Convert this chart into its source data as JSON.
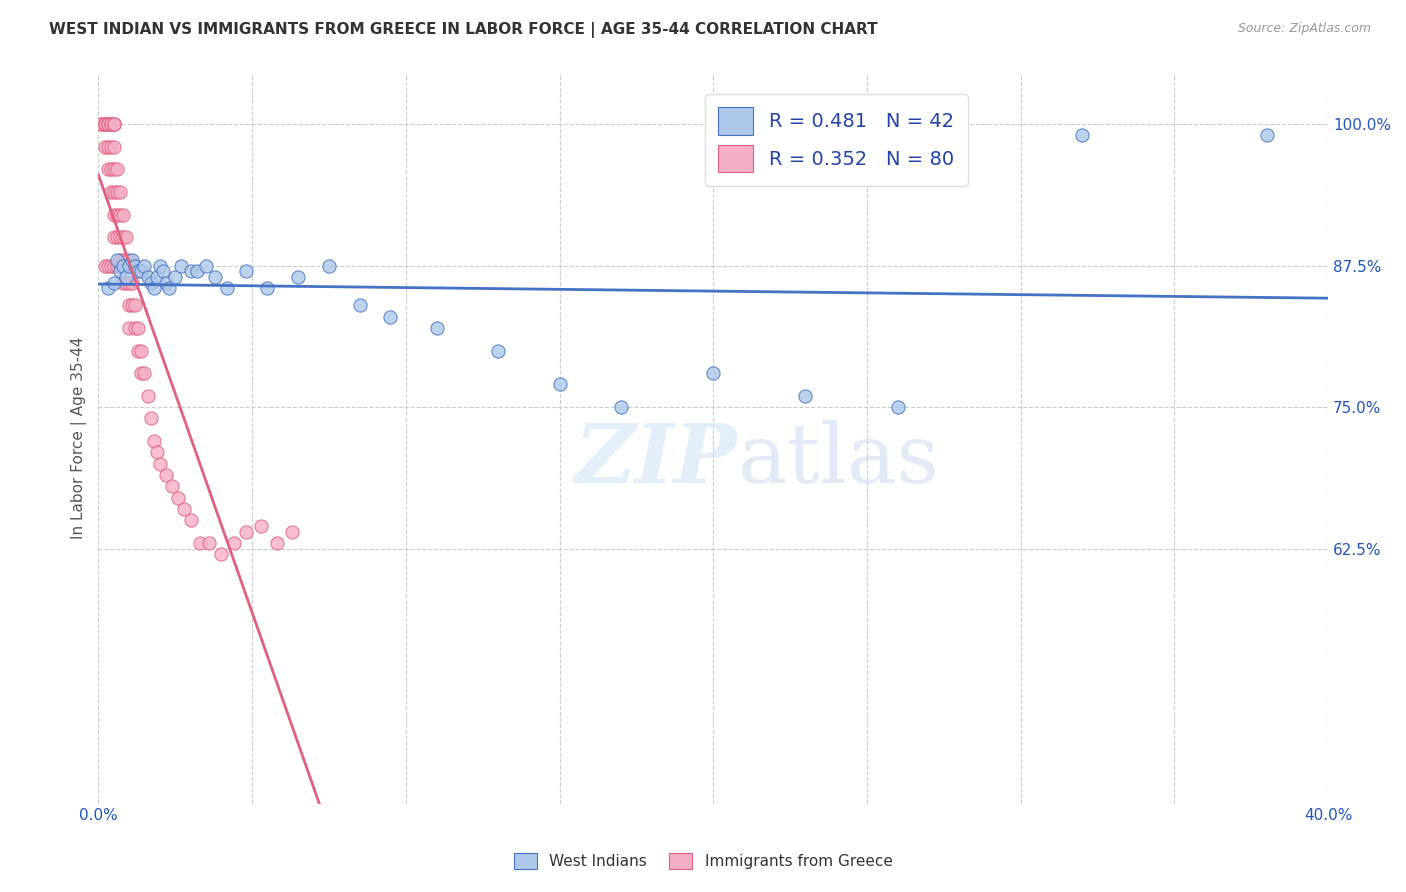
{
  "title": "WEST INDIAN VS IMMIGRANTS FROM GREECE IN LABOR FORCE | AGE 35-44 CORRELATION CHART",
  "source": "Source: ZipAtlas.com",
  "ylabel": "In Labor Force | Age 35-44",
  "xlim": [
    0.0,
    0.4
  ],
  "ylim": [
    0.4,
    1.045
  ],
  "xticks": [
    0.0,
    0.05,
    0.1,
    0.15,
    0.2,
    0.25,
    0.3,
    0.35,
    0.4
  ],
  "xticklabels": [
    "0.0%",
    "",
    "",
    "",
    "",
    "",
    "",
    "",
    "40.0%"
  ],
  "yticks": [
    0.625,
    0.75,
    0.875,
    1.0
  ],
  "yticklabels": [
    "62.5%",
    "75.0%",
    "87.5%",
    "100.0%"
  ],
  "west_indian_R": 0.481,
  "west_indian_N": 42,
  "greece_R": 0.352,
  "greece_N": 80,
  "west_indian_color": "#adc8e8",
  "greece_color": "#f5afc4",
  "west_indian_line_color": "#4472c4",
  "greece_line_color": "#e06080",
  "legend_text_color": "#2244aa",
  "watermark_line1": "ZIP",
  "watermark_line2": "atlas",
  "background_color": "#ffffff",
  "grid_color": "#cccccc",
  "west_indian_x": [
    0.003,
    0.005,
    0.006,
    0.007,
    0.008,
    0.009,
    0.01,
    0.011,
    0.012,
    0.013,
    0.014,
    0.015,
    0.016,
    0.017,
    0.018,
    0.019,
    0.02,
    0.021,
    0.022,
    0.023,
    0.025,
    0.027,
    0.03,
    0.032,
    0.035,
    0.038,
    0.042,
    0.048,
    0.055,
    0.065,
    0.075,
    0.085,
    0.095,
    0.11,
    0.13,
    0.15,
    0.17,
    0.2,
    0.23,
    0.26,
    0.32,
    0.38
  ],
  "west_indian_y": [
    0.855,
    0.86,
    0.88,
    0.87,
    0.875,
    0.865,
    0.875,
    0.88,
    0.875,
    0.87,
    0.87,
    0.875,
    0.865,
    0.86,
    0.855,
    0.865,
    0.875,
    0.87,
    0.86,
    0.855,
    0.865,
    0.875,
    0.87,
    0.87,
    0.875,
    0.865,
    0.855,
    0.87,
    0.855,
    0.865,
    0.875,
    0.84,
    0.83,
    0.82,
    0.8,
    0.77,
    0.75,
    0.78,
    0.76,
    0.75,
    0.99,
    0.99
  ],
  "greece_x": [
    0.001,
    0.001,
    0.002,
    0.002,
    0.002,
    0.002,
    0.003,
    0.003,
    0.003,
    0.003,
    0.003,
    0.004,
    0.004,
    0.004,
    0.004,
    0.004,
    0.005,
    0.005,
    0.005,
    0.005,
    0.005,
    0.005,
    0.005,
    0.005,
    0.006,
    0.006,
    0.006,
    0.006,
    0.007,
    0.007,
    0.007,
    0.007,
    0.008,
    0.008,
    0.008,
    0.008,
    0.009,
    0.009,
    0.009,
    0.01,
    0.01,
    0.01,
    0.01,
    0.011,
    0.011,
    0.012,
    0.012,
    0.013,
    0.013,
    0.014,
    0.014,
    0.015,
    0.016,
    0.017,
    0.018,
    0.019,
    0.02,
    0.022,
    0.024,
    0.026,
    0.028,
    0.03,
    0.033,
    0.036,
    0.04,
    0.044,
    0.048,
    0.053,
    0.058,
    0.063,
    0.002,
    0.003,
    0.004,
    0.005,
    0.006,
    0.007,
    0.008,
    0.009,
    0.01,
    0.012
  ],
  "greece_y": [
    1.0,
    1.0,
    1.0,
    1.0,
    1.0,
    0.98,
    1.0,
    1.0,
    1.0,
    0.98,
    0.96,
    1.0,
    1.0,
    0.98,
    0.96,
    0.94,
    1.0,
    1.0,
    1.0,
    0.98,
    0.96,
    0.94,
    0.92,
    0.9,
    0.96,
    0.94,
    0.92,
    0.9,
    0.94,
    0.92,
    0.9,
    0.88,
    0.92,
    0.9,
    0.88,
    0.86,
    0.9,
    0.88,
    0.86,
    0.88,
    0.86,
    0.84,
    0.82,
    0.86,
    0.84,
    0.84,
    0.82,
    0.82,
    0.8,
    0.8,
    0.78,
    0.78,
    0.76,
    0.74,
    0.72,
    0.71,
    0.7,
    0.69,
    0.68,
    0.67,
    0.66,
    0.65,
    0.63,
    0.63,
    0.62,
    0.63,
    0.64,
    0.645,
    0.63,
    0.64,
    0.875,
    0.875,
    0.875,
    0.875,
    0.875,
    0.875,
    0.875,
    0.875,
    0.875,
    0.875
  ]
}
